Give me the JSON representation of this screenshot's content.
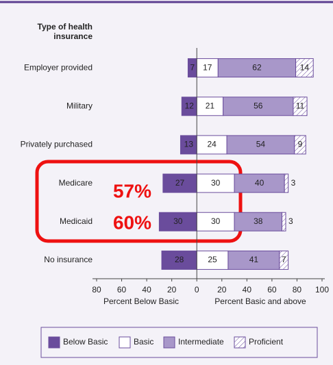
{
  "chart_data": {
    "type": "bar",
    "orientation": "horizontal",
    "stacked": true,
    "category_header": "Type of health insurance",
    "categories": [
      "Employer provided",
      "Military",
      "Privately purchased",
      "Medicare",
      "Medicaid",
      "No insurance"
    ],
    "series": [
      {
        "name": "Below Basic",
        "color": "#6a4c9c",
        "values": [
          -7,
          -12,
          -13,
          -27,
          -30,
          -28
        ],
        "value_labels": [
          "7",
          "12",
          "13",
          "27",
          "30",
          "28"
        ]
      },
      {
        "name": "Basic",
        "color": "#ffffff",
        "values": [
          17,
          21,
          24,
          30,
          30,
          25
        ]
      },
      {
        "name": "Intermediate",
        "color": "#a897c9",
        "values": [
          62,
          56,
          54,
          40,
          38,
          41
        ]
      },
      {
        "name": "Proficient",
        "color": "#ffffff",
        "hatch": true,
        "values": [
          14,
          11,
          9,
          3,
          3,
          7
        ]
      }
    ],
    "xlim": [
      -80,
      100
    ],
    "xticks": [
      {
        "value": -80,
        "label": "80"
      },
      {
        "value": -60,
        "label": "60"
      },
      {
        "value": -40,
        "label": "40"
      },
      {
        "value": -20,
        "label": "20"
      },
      0,
      20,
      40,
      60,
      80,
      100
    ],
    "x_label_left": "Percent Below Basic",
    "x_label_right": "Percent Basic and above",
    "annotations": [
      "57%",
      "60%"
    ],
    "legend": "bottom"
  }
}
